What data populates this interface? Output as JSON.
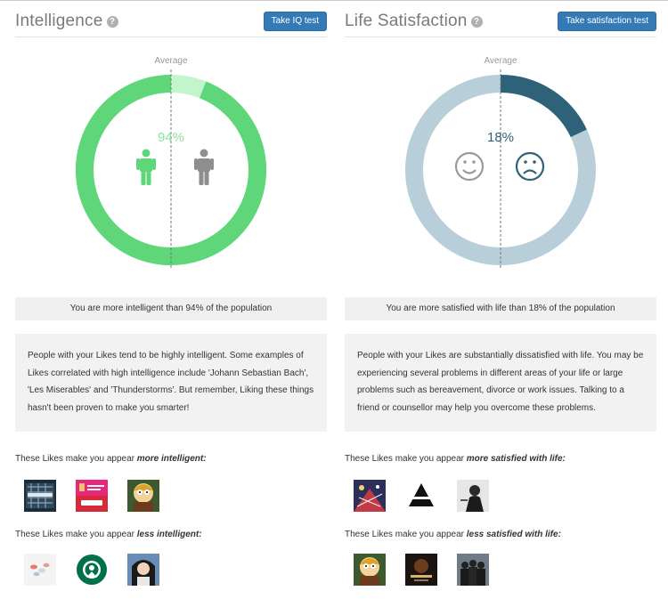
{
  "intelligence": {
    "title": "Intelligence",
    "help_icon": "question-circle-icon",
    "button_label": "Take IQ test",
    "average_label": "Average",
    "percent": 94,
    "percent_label": "94%",
    "ring_color": "#5fd67a",
    "ring_light_color": "#c2f5cc",
    "summary": "You are more intelligent than 94% of the population",
    "description": "People with your Likes tend to be highly intelligent. Some examples of Likes correlated with high intelligence include 'Johann Sebastian Bach', 'Les Miserables' and 'Thunderstorms'. But remember, Liking these things hasn't been proven to make you smarter!",
    "more_label_prefix": "These Likes make you appear",
    "more_label_em": "more intelligent:",
    "less_label_prefix": "These Likes make you appear",
    "less_label_em": "less intelligent:",
    "more_likes": [
      "inception-poster-thumb",
      "how-i-met-your-mother-thumb",
      "south-park-character-thumb"
    ],
    "less_likes": [
      "pills-thumb",
      "starbucks-logo-thumb",
      "cartoon-woman-thumb"
    ]
  },
  "satisfaction": {
    "title": "Life Satisfaction",
    "help_icon": "question-circle-icon",
    "button_label": "Take satisfaction test",
    "average_label": "Average",
    "percent": 18,
    "percent_label": "18%",
    "ring_color": "#2e6278",
    "ring_light_color": "#b8cfda",
    "summary": "You are more satisfied with life than 18% of the population",
    "description": "People with your Likes are substantially dissatisfied with life. You may be experiencing several problems in different areas of your life or large problems such as bereavement, divorce or work issues. Talking to a friend or counsellor may help you overcome these problems.",
    "more_label_prefix": "These Likes make you appear",
    "more_label_em": "more satisfied with life:",
    "less_label_prefix": "These Likes make you appear",
    "less_label_em": "less satisfied with life:",
    "more_likes": [
      "fireworks-poster-thumb",
      "triangle-logo-thumb",
      "band-photo-thumb"
    ],
    "less_likes": [
      "south-park-character-thumb",
      "dark-poster-thumb",
      "band-group-thumb"
    ]
  }
}
